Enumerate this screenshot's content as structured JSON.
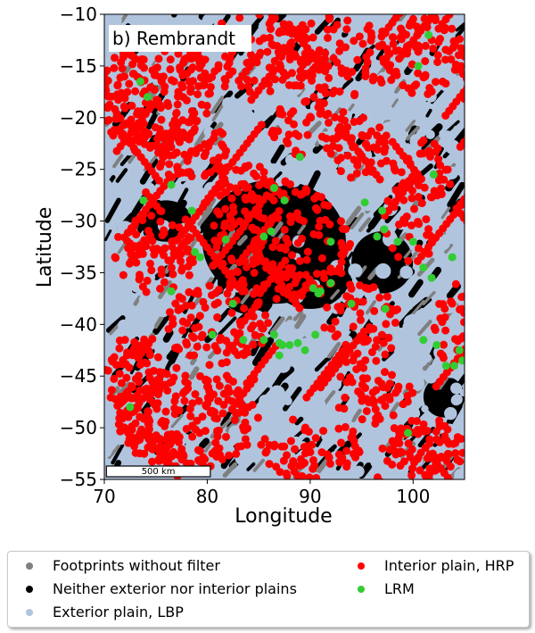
{
  "chart_data": {
    "type": "scatter",
    "title": "b) Rembrandt",
    "xlabel": "Longitude",
    "ylabel": "Latitude",
    "xlim": [
      70,
      105
    ],
    "ylim": [
      -55,
      -10
    ],
    "xticks": [
      "70",
      "80",
      "90",
      "100"
    ],
    "yticks": [
      "−10",
      "−15",
      "−20",
      "−25",
      "−30",
      "−35",
      "−40",
      "−45",
      "−50",
      "−55"
    ],
    "scale_bar": {
      "label": "500 km",
      "from_lon": 70.2,
      "to_lon": 80.3,
      "lat": -54.1
    },
    "legend_location": "below",
    "series": [
      {
        "name": "Footprints without filter",
        "color": "#808080"
      },
      {
        "name": "Neither exterior nor interior plains",
        "color": "#000000"
      },
      {
        "name": "Exterior plain, LBP",
        "color": "#b0c4de"
      },
      {
        "name": "Interior plain, HRP",
        "color": "#ff0000"
      },
      {
        "name": "LRM",
        "color": "#32cd32"
      }
    ],
    "lrm_points": [
      [
        73.5,
        -16.5
      ],
      [
        74.2,
        -18
      ],
      [
        76.5,
        -26.5
      ],
      [
        73.8,
        -28
      ],
      [
        78.5,
        -29
      ],
      [
        78.8,
        -33
      ],
      [
        79.3,
        -33.5
      ],
      [
        81.8,
        -31.8
      ],
      [
        76.5,
        -36.8
      ],
      [
        82.5,
        -38
      ],
      [
        86.5,
        -26.8
      ],
      [
        87.5,
        -28
      ],
      [
        86.2,
        -31
      ],
      [
        85.5,
        -31.5
      ],
      [
        90.3,
        -36.5
      ],
      [
        90.8,
        -37
      ],
      [
        91,
        -36.8
      ],
      [
        92,
        -36
      ],
      [
        89,
        -23.8
      ],
      [
        92,
        -32
      ],
      [
        90.5,
        -41
      ],
      [
        97,
        -29
      ],
      [
        96.5,
        -31.5
      ],
      [
        97.2,
        -30.8
      ],
      [
        98.5,
        -32
      ],
      [
        100,
        -32
      ],
      [
        103.8,
        -33.5
      ],
      [
        101,
        -34.5
      ],
      [
        101.8,
        -35.5
      ],
      [
        95.3,
        -28.2
      ],
      [
        94,
        -38
      ],
      [
        97.3,
        -38.5
      ],
      [
        86.5,
        -41
      ],
      [
        87,
        -41.8
      ],
      [
        87.3,
        -42
      ],
      [
        85.5,
        -41.5
      ],
      [
        88,
        -42
      ],
      [
        89.5,
        -42.5
      ],
      [
        88.8,
        -41.8
      ],
      [
        83.5,
        -41.5
      ],
      [
        80.5,
        -41
      ],
      [
        87,
        -43
      ],
      [
        101,
        -41.5
      ],
      [
        102.3,
        -42
      ],
      [
        102,
        -25.5
      ],
      [
        99.5,
        -50.5
      ],
      [
        104.5,
        -42.5
      ],
      [
        104,
        -44
      ],
      [
        104.8,
        -43.5
      ],
      [
        103.2,
        -44
      ],
      [
        101.5,
        -12
      ],
      [
        100.5,
        -15
      ],
      [
        72.5,
        -48
      ]
    ]
  }
}
